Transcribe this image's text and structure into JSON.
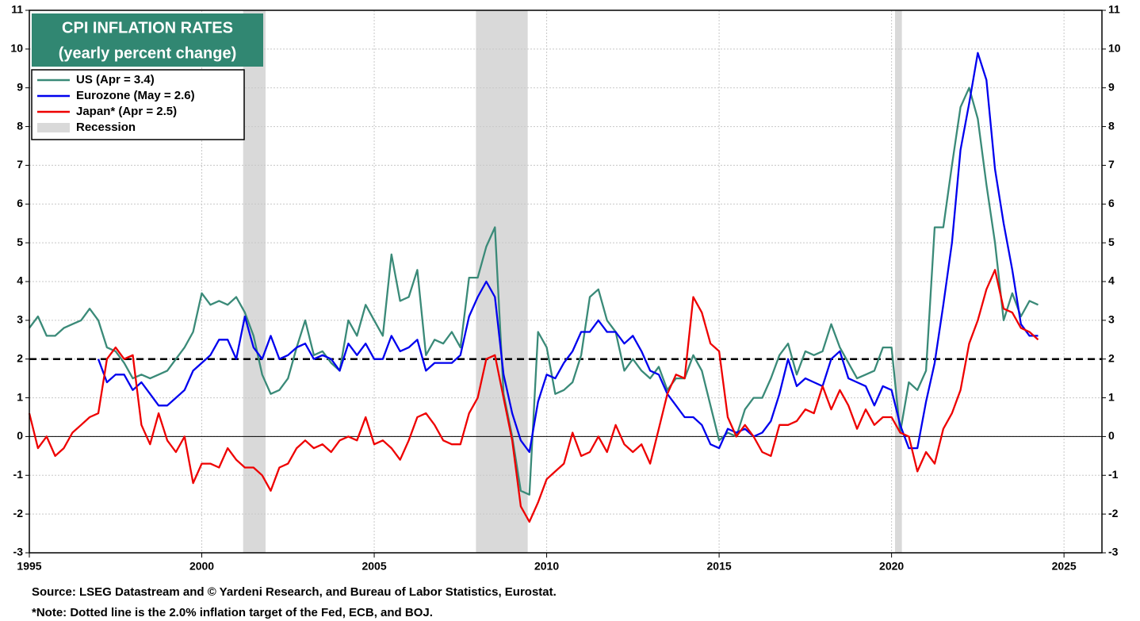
{
  "chart_data": {
    "type": "line",
    "title": "CPI INFLATION RATES",
    "subtitle": "(yearly percent change)",
    "notes": [
      "Source: LSEG Datastream and © Yardeni Research, and Bureau of Labor Statistics, Eurostat.",
      "*Note: Dotted line is the 2.0% inflation target of the Fed, ECB, and BOJ."
    ],
    "x": [
      1995,
      1995.25,
      1995.5,
      1995.75,
      1996,
      1996.25,
      1996.5,
      1996.75,
      1997,
      1997.25,
      1997.5,
      1997.75,
      1998,
      1998.25,
      1998.5,
      1998.75,
      1999,
      1999.25,
      1999.5,
      1999.75,
      2000,
      2000.25,
      2000.5,
      2000.75,
      2001,
      2001.25,
      2001.5,
      2001.75,
      2002,
      2002.25,
      2002.5,
      2002.75,
      2003,
      2003.25,
      2003.5,
      2003.75,
      2004,
      2004.25,
      2004.5,
      2004.75,
      2005,
      2005.25,
      2005.5,
      2005.75,
      2006,
      2006.25,
      2006.5,
      2006.75,
      2007,
      2007.25,
      2007.5,
      2007.75,
      2008,
      2008.25,
      2008.5,
      2008.75,
      2009,
      2009.25,
      2009.5,
      2009.75,
      2010,
      2010.25,
      2010.5,
      2010.75,
      2011,
      2011.25,
      2011.5,
      2011.75,
      2012,
      2012.25,
      2012.5,
      2012.75,
      2013,
      2013.25,
      2013.5,
      2013.75,
      2014,
      2014.25,
      2014.5,
      2014.75,
      2015,
      2015.25,
      2015.5,
      2015.75,
      2016,
      2016.25,
      2016.5,
      2016.75,
      2017,
      2017.25,
      2017.5,
      2017.75,
      2018,
      2018.25,
      2018.5,
      2018.75,
      2019,
      2019.25,
      2019.5,
      2019.75,
      2020,
      2020.25,
      2020.5,
      2020.75,
      2021,
      2021.25,
      2021.5,
      2021.75,
      2022,
      2022.25,
      2022.5,
      2022.75,
      2023,
      2023.25,
      2023.5,
      2023.75,
      2024,
      2024.25
    ],
    "series": [
      {
        "name": "US (Apr = 3.4)",
        "color": "#3a8a78",
        "values": [
          2.8,
          3.1,
          2.6,
          2.6,
          2.8,
          2.9,
          3.0,
          3.3,
          3.0,
          2.3,
          2.2,
          1.9,
          1.5,
          1.6,
          1.5,
          1.6,
          1.7,
          2.0,
          2.3,
          2.7,
          3.7,
          3.4,
          3.5,
          3.4,
          3.6,
          3.2,
          2.6,
          1.6,
          1.1,
          1.2,
          1.5,
          2.3,
          3.0,
          2.1,
          2.2,
          1.9,
          1.7,
          3.0,
          2.6,
          3.4,
          3.0,
          2.6,
          4.7,
          3.5,
          3.6,
          4.3,
          2.1,
          2.5,
          2.4,
          2.7,
          2.3,
          4.1,
          4.1,
          4.9,
          5.4,
          1.1,
          0.0,
          -1.4,
          -1.5,
          2.7,
          2.3,
          1.1,
          1.2,
          1.4,
          2.1,
          3.6,
          3.8,
          3.0,
          2.7,
          1.7,
          2.0,
          1.7,
          1.5,
          1.8,
          1.2,
          1.5,
          1.5,
          2.1,
          1.7,
          0.8,
          -0.1,
          0.1,
          0.0,
          0.7,
          1.0,
          1.0,
          1.5,
          2.1,
          2.4,
          1.6,
          2.2,
          2.1,
          2.2,
          2.9,
          2.3,
          1.9,
          1.5,
          1.6,
          1.7,
          2.3,
          2.3,
          0.1,
          1.4,
          1.2,
          1.7,
          5.4,
          5.4,
          7.0,
          8.5,
          9.0,
          8.2,
          6.5,
          5.0,
          3.0,
          3.7,
          3.1,
          3.5,
          3.4
        ]
      },
      {
        "name": "Eurozone (May = 2.6)",
        "color": "#0000ee",
        "values": [
          null,
          null,
          null,
          null,
          null,
          null,
          null,
          null,
          2.0,
          1.4,
          1.6,
          1.6,
          1.2,
          1.4,
          1.1,
          0.8,
          0.8,
          1.0,
          1.2,
          1.7,
          1.9,
          2.1,
          2.5,
          2.5,
          2.0,
          3.1,
          2.3,
          2.0,
          2.6,
          2.0,
          2.1,
          2.3,
          2.4,
          2.0,
          2.1,
          2.0,
          1.7,
          2.4,
          2.1,
          2.4,
          2.0,
          2.0,
          2.6,
          2.2,
          2.3,
          2.5,
          1.7,
          1.9,
          1.9,
          1.9,
          2.1,
          3.1,
          3.6,
          4.0,
          3.6,
          1.6,
          0.6,
          -0.1,
          -0.4,
          0.9,
          1.6,
          1.5,
          1.9,
          2.2,
          2.7,
          2.7,
          3.0,
          2.7,
          2.7,
          2.4,
          2.6,
          2.2,
          1.7,
          1.6,
          1.1,
          0.8,
          0.5,
          0.5,
          0.3,
          -0.2,
          -0.3,
          0.2,
          0.1,
          0.2,
          0.0,
          0.1,
          0.4,
          1.1,
          2.0,
          1.3,
          1.5,
          1.4,
          1.3,
          2.0,
          2.2,
          1.5,
          1.4,
          1.3,
          0.8,
          1.3,
          1.2,
          0.3,
          -0.3,
          -0.3,
          0.9,
          1.9,
          3.4,
          5.0,
          7.4,
          8.6,
          9.9,
          9.2,
          6.9,
          5.5,
          4.3,
          2.9,
          2.6,
          2.6
        ]
      },
      {
        "name": "Japan* (Apr = 2.5)",
        "color": "#ee0000",
        "values": [
          0.6,
          -0.3,
          0.0,
          -0.5,
          -0.3,
          0.1,
          0.3,
          0.5,
          0.6,
          2.0,
          2.3,
          2.0,
          2.1,
          0.3,
          -0.2,
          0.6,
          -0.1,
          -0.4,
          0.0,
          -1.2,
          -0.7,
          -0.7,
          -0.8,
          -0.3,
          -0.6,
          -0.8,
          -0.8,
          -1.0,
          -1.4,
          -0.8,
          -0.7,
          -0.3,
          -0.1,
          -0.3,
          -0.2,
          -0.4,
          -0.1,
          0.0,
          -0.1,
          0.5,
          -0.2,
          -0.1,
          -0.3,
          -0.6,
          -0.1,
          0.5,
          0.6,
          0.3,
          -0.1,
          -0.2,
          -0.2,
          0.6,
          1.0,
          2.0,
          2.1,
          1.0,
          -0.1,
          -1.8,
          -2.2,
          -1.7,
          -1.1,
          -0.9,
          -0.7,
          0.1,
          -0.5,
          -0.4,
          0.0,
          -0.4,
          0.3,
          -0.2,
          -0.4,
          -0.2,
          -0.7,
          0.2,
          1.1,
          1.6,
          1.5,
          3.6,
          3.2,
          2.4,
          2.2,
          0.5,
          0.0,
          0.3,
          0.0,
          -0.4,
          -0.5,
          0.3,
          0.3,
          0.4,
          0.7,
          0.6,
          1.3,
          0.7,
          1.2,
          0.8,
          0.2,
          0.7,
          0.3,
          0.5,
          0.5,
          0.1,
          0.0,
          -0.9,
          -0.4,
          -0.7,
          0.2,
          0.6,
          1.2,
          2.4,
          3.0,
          3.8,
          4.3,
          3.3,
          3.2,
          2.8,
          2.7,
          2.5
        ]
      }
    ],
    "recessions": {
      "name": "Recession",
      "color": "#d9d9d9",
      "spans": [
        [
          2001.2,
          2001.85
        ],
        [
          2007.95,
          2009.45
        ],
        [
          2020.1,
          2020.3
        ]
      ]
    },
    "reference_line": {
      "value": 2,
      "color": "#000000",
      "dashed": true
    },
    "xlim": [
      1995,
      2026.1
    ],
    "ylim": [
      -3,
      11
    ],
    "xticks": [
      1995,
      2000,
      2005,
      2010,
      2015,
      2020,
      2025
    ],
    "yticks": [
      -3,
      -2,
      -1,
      0,
      1,
      2,
      3,
      4,
      5,
      6,
      7,
      8,
      9,
      10,
      11
    ],
    "grid": true,
    "legend": "upper left",
    "title_color": "#318772"
  }
}
